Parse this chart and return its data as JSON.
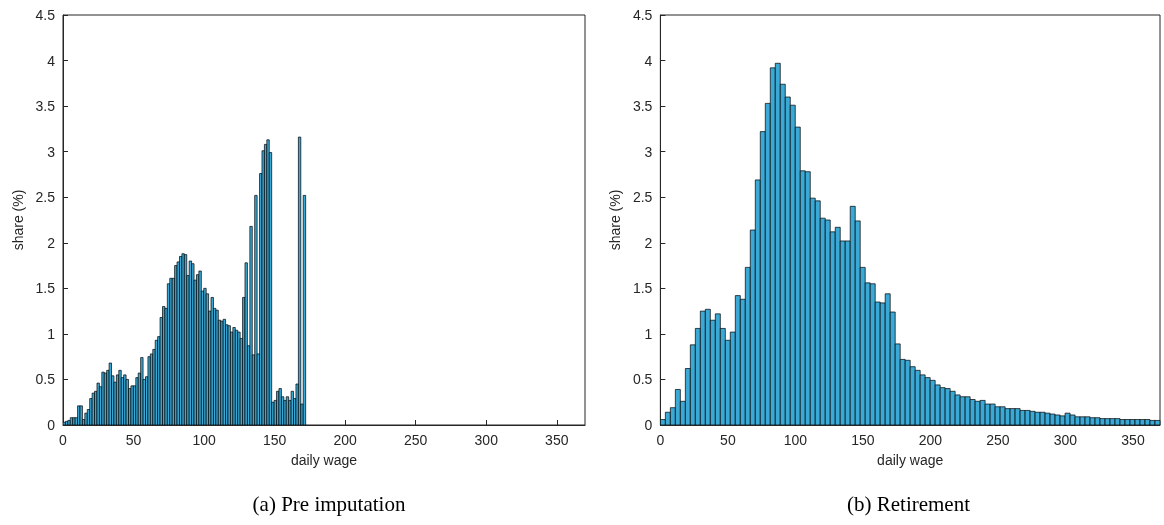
{
  "chart_data": [
    {
      "type": "histogram",
      "title": "(a) Pre imputation",
      "xlabel": "daily wage",
      "ylabel": "share (%)",
      "color": "#3ba9d6",
      "bins": [
        0,
        1.72,
        3.44,
        5.16,
        6.88,
        8.6,
        10.32,
        12.04,
        13.76,
        15.48,
        17.2,
        18.92,
        20.64,
        22.36,
        24.08,
        25.8,
        27.52,
        29.24,
        30.96,
        32.68,
        34.4,
        36.12,
        37.84,
        39.56,
        41.28,
        43,
        44.72,
        46.44,
        48.16,
        49.88,
        51.6,
        53.32,
        55.04,
        56.76,
        58.48,
        60.2,
        61.92,
        63.64,
        65.36,
        67.08,
        68.8,
        70.52,
        72.24,
        73.96,
        75.68,
        77.4,
        79.12,
        80.84,
        82.56,
        84.28,
        86,
        87.72,
        89.44,
        91.16,
        92.88,
        94.6,
        96.32,
        98.04,
        99.76,
        101.48,
        103.2,
        104.92,
        106.64,
        108.36,
        110.08,
        111.8,
        113.52,
        115.24,
        116.96,
        118.68,
        120.4,
        122.12,
        123.84,
        125.56,
        127.28,
        129,
        130.72,
        132.44,
        134.16,
        135.88,
        137.6,
        139.32,
        141.04,
        142.76,
        144.48,
        146.2,
        147.92,
        149.64,
        151.36,
        153.08,
        154.8,
        156.52,
        158.24,
        159.96,
        161.68,
        163.4,
        165.12,
        166.84,
        168.56,
        170.28,
        172
      ],
      "values": [
        0.03,
        0.04,
        0.05,
        0.08,
        0.08,
        0.08,
        0.21,
        0.21,
        0.06,
        0.13,
        0.17,
        0.29,
        0.35,
        0.37,
        0.46,
        0.42,
        0.58,
        0.57,
        0.6,
        0.68,
        0.54,
        0.47,
        0.55,
        0.6,
        0.52,
        0.55,
        0.5,
        0.4,
        0.43,
        0.43,
        0.52,
        0.57,
        0.74,
        0.5,
        0.53,
        0.75,
        0.78,
        0.83,
        0.93,
        0.97,
        1.18,
        1.3,
        1.28,
        1.55,
        1.61,
        1.61,
        1.75,
        1.79,
        1.85,
        1.88,
        1.87,
        1.64,
        1.8,
        1.77,
        1.59,
        1.65,
        1.69,
        1.47,
        1.5,
        1.44,
        1.25,
        1.4,
        1.28,
        1.26,
        1.15,
        1.14,
        1.16,
        1.1,
        1.09,
        1.02,
        1.07,
        1.04,
        1.02,
        0.95,
        1.4,
        1.78,
        0.87,
        2.18,
        0.77,
        2.52,
        0.78,
        2.76,
        3.01,
        3.08,
        3.13,
        2.99,
        0.25,
        0.27,
        0.37,
        0.4,
        0.31,
        0.27,
        0.31,
        0.27,
        0.37,
        0.29,
        0.45,
        3.16,
        0.23,
        2.52
      ],
      "xlim": [
        0,
        370
      ],
      "ylim": [
        0,
        4.5
      ],
      "xticks": [
        0,
        50,
        100,
        150,
        200,
        250,
        300,
        350
      ],
      "yticks": [
        0,
        0.5,
        1,
        1.5,
        2,
        2.5,
        3,
        3.5,
        4,
        4.5
      ]
    },
    {
      "type": "histogram",
      "title": "(b) Retirement",
      "xlabel": "daily wage",
      "ylabel": "share (%)",
      "color": "#3ba9d6",
      "bins": [
        0,
        3.7,
        7.4,
        11.1,
        14.8,
        18.5,
        22.2,
        25.9,
        29.6,
        33.3,
        37,
        40.7,
        44.4,
        48.1,
        51.8,
        55.5,
        59.2,
        62.9,
        66.6,
        70.3,
        74,
        77.7,
        81.4,
        85.1,
        88.8,
        92.5,
        96.2,
        99.9,
        103.6,
        107.3,
        111,
        114.7,
        118.4,
        122.1,
        125.8,
        129.5,
        133.2,
        136.9,
        140.6,
        144.3,
        148,
        151.7,
        155.4,
        159.1,
        162.8,
        166.5,
        170.2,
        173.9,
        177.6,
        181.3,
        185,
        188.7,
        192.4,
        196.1,
        199.8,
        203.5,
        207.2,
        210.9,
        214.6,
        218.3,
        222,
        225.7,
        229.4,
        233.1,
        236.8,
        240.5,
        244.2,
        247.9,
        251.6,
        255.3,
        259,
        262.7,
        266.4,
        270.1,
        273.8,
        277.5,
        281.2,
        284.9,
        288.6,
        292.3,
        296,
        299.7,
        303.4,
        307.1,
        310.8,
        314.5,
        318.2,
        321.9,
        325.6,
        329.3,
        333,
        336.7,
        340.4,
        344.1,
        347.8,
        351.5,
        355.2,
        358.9,
        362.6,
        366.3,
        370
      ],
      "values": [
        0.06,
        0.14,
        0.19,
        0.39,
        0.26,
        0.62,
        0.88,
        1.06,
        1.25,
        1.27,
        1.15,
        1.22,
        1.06,
        0.93,
        1.02,
        1.42,
        1.38,
        1.73,
        2.14,
        2.69,
        3.22,
        3.53,
        3.92,
        3.97,
        3.74,
        3.6,
        3.51,
        3.27,
        2.79,
        2.78,
        2.49,
        2.46,
        2.27,
        2.25,
        2.12,
        2.17,
        2.02,
        2.02,
        2.4,
        2.24,
        1.73,
        1.56,
        1.55,
        1.35,
        1.34,
        1.44,
        1.24,
        0.89,
        0.72,
        0.71,
        0.64,
        0.6,
        0.55,
        0.52,
        0.49,
        0.44,
        0.41,
        0.4,
        0.37,
        0.33,
        0.31,
        0.31,
        0.28,
        0.26,
        0.27,
        0.23,
        0.23,
        0.2,
        0.2,
        0.18,
        0.18,
        0.18,
        0.16,
        0.16,
        0.15,
        0.14,
        0.14,
        0.13,
        0.12,
        0.11,
        0.1,
        0.13,
        0.11,
        0.09,
        0.09,
        0.09,
        0.08,
        0.08,
        0.07,
        0.07,
        0.07,
        0.07,
        0.06,
        0.06,
        0.06,
        0.06,
        0.06,
        0.06,
        0.05,
        0.05
      ],
      "xlim": [
        0,
        370
      ],
      "ylim": [
        0,
        4.5
      ],
      "xticks": [
        0,
        50,
        100,
        150,
        200,
        250,
        300,
        350
      ],
      "yticks": [
        0,
        0.5,
        1,
        1.5,
        2,
        2.5,
        3,
        3.5,
        4,
        4.5
      ]
    }
  ]
}
